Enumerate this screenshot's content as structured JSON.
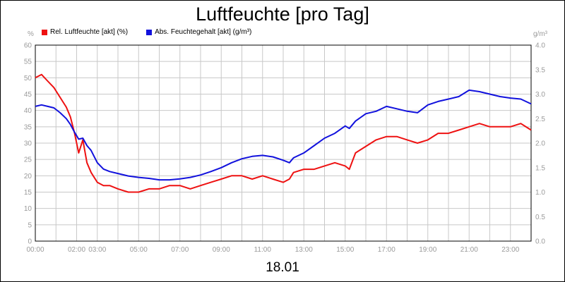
{
  "chart_data": {
    "type": "line",
    "title": "Luftfeuchte [pro Tag]",
    "xlabel": "18.01",
    "ylabel_left": "%",
    "ylabel_right": "g/m³",
    "ylim_left": [
      0,
      60
    ],
    "ylim_right": [
      0,
      4.0
    ],
    "left_ticks": [
      0,
      5,
      10,
      15,
      20,
      25,
      30,
      35,
      40,
      45,
      50,
      55,
      60
    ],
    "right_ticks": [
      "0.0",
      "0.5",
      "1.0",
      "1.5",
      "2.0",
      "2.5",
      "3.0",
      "3.5",
      "4.0"
    ],
    "x_ticks": [
      "00:00",
      "02:00",
      "03:00",
      "05:00",
      "07:00",
      "09:00",
      "11:00",
      "13:00",
      "15:00",
      "17:00",
      "19:00",
      "21:00",
      "23:00"
    ],
    "x_tick_hours": [
      0,
      2,
      3,
      5,
      7,
      9,
      11,
      13,
      15,
      17,
      19,
      21,
      23
    ],
    "grid": true,
    "legend_position": "top-left",
    "series": [
      {
        "name": "Rel. Luftfeuchte [akt] (%)",
        "axis": "left",
        "color": "#ee1111",
        "x": [
          0,
          0.3,
          0.6,
          0.9,
          1.2,
          1.5,
          1.7,
          1.9,
          2.1,
          2.3,
          2.5,
          2.7,
          3.0,
          3.3,
          3.6,
          4.0,
          4.5,
          5.0,
          5.5,
          6.0,
          6.5,
          7.0,
          7.5,
          8.0,
          8.5,
          9.0,
          9.5,
          10.0,
          10.5,
          11.0,
          11.5,
          12.0,
          12.3,
          12.5,
          13.0,
          13.5,
          14.0,
          14.5,
          15.0,
          15.2,
          15.5,
          16.0,
          16.5,
          17.0,
          17.5,
          18.0,
          18.5,
          19.0,
          19.5,
          20.0,
          20.5,
          21.0,
          21.5,
          22.0,
          22.5,
          23.0,
          23.5,
          24.0
        ],
        "values": [
          50,
          51,
          49,
          47,
          44,
          41,
          38,
          33,
          27,
          31,
          24,
          21,
          18,
          17,
          17,
          16,
          15,
          15,
          16,
          16,
          17,
          17,
          16,
          17,
          18,
          19,
          20,
          20,
          19,
          20,
          19,
          18,
          19,
          21,
          22,
          22,
          23,
          24,
          23,
          22,
          27,
          29,
          31,
          32,
          32,
          31,
          30,
          31,
          33,
          33,
          34,
          35,
          36,
          35,
          35,
          35,
          36,
          34
        ]
      },
      {
        "name": "Abs. Feuchtegehalt [akt] (g/m³)",
        "axis": "right",
        "color": "#1111dd",
        "x": [
          0,
          0.3,
          0.6,
          0.9,
          1.2,
          1.5,
          1.7,
          1.9,
          2.1,
          2.3,
          2.5,
          2.7,
          3.0,
          3.3,
          3.6,
          4.0,
          4.5,
          5.0,
          5.5,
          6.0,
          6.5,
          7.0,
          7.5,
          8.0,
          8.5,
          9.0,
          9.5,
          10.0,
          10.5,
          11.0,
          11.5,
          12.0,
          12.3,
          12.5,
          13.0,
          13.5,
          14.0,
          14.5,
          15.0,
          15.2,
          15.5,
          16.0,
          16.5,
          17.0,
          17.5,
          18.0,
          18.5,
          19.0,
          19.5,
          20.0,
          20.5,
          21.0,
          21.5,
          22.0,
          22.5,
          23.0,
          23.5,
          24.0
        ],
        "values": [
          2.75,
          2.78,
          2.75,
          2.72,
          2.62,
          2.5,
          2.38,
          2.22,
          2.08,
          2.1,
          1.95,
          1.85,
          1.6,
          1.47,
          1.42,
          1.38,
          1.33,
          1.3,
          1.28,
          1.25,
          1.25,
          1.27,
          1.3,
          1.35,
          1.42,
          1.5,
          1.6,
          1.68,
          1.73,
          1.75,
          1.72,
          1.65,
          1.6,
          1.7,
          1.8,
          1.95,
          2.1,
          2.2,
          2.35,
          2.3,
          2.45,
          2.6,
          2.65,
          2.75,
          2.7,
          2.65,
          2.62,
          2.78,
          2.85,
          2.9,
          2.95,
          3.08,
          3.05,
          3.0,
          2.95,
          2.92,
          2.9,
          2.8
        ]
      }
    ]
  }
}
